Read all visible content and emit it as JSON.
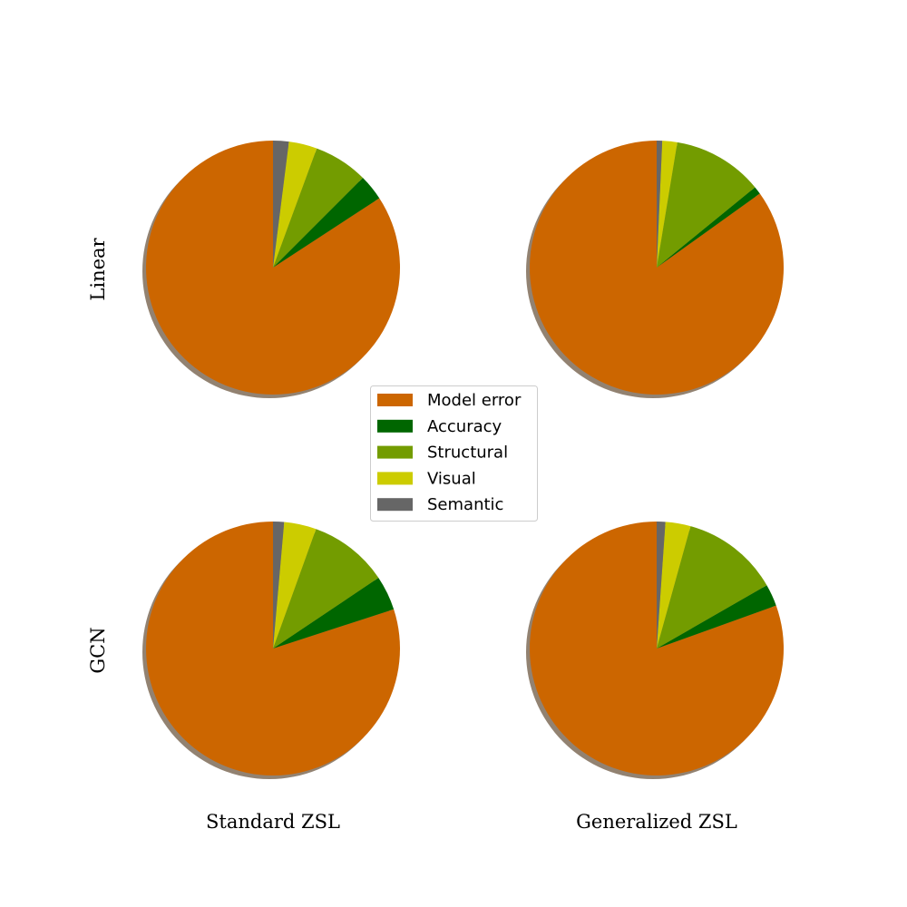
{
  "chart_data": {
    "type": "pie",
    "categories": [
      "Model error",
      "Accuracy",
      "Structural",
      "Visual",
      "Semantic"
    ],
    "colors": [
      "#cc6600",
      "#006600",
      "#739c00",
      "#cccc00",
      "#666666"
    ],
    "row_labels": [
      "Linear",
      "GCN"
    ],
    "column_labels": [
      "Standard ZSL",
      "Generalized ZSL"
    ],
    "values": [
      [
        [
          84.2,
          3.3,
          6.9,
          3.6,
          2.0
        ],
        [
          84.9,
          1.0,
          11.5,
          1.9,
          0.7
        ]
      ],
      [
        [
          80.0,
          4.4,
          10.1,
          4.1,
          1.4
        ],
        [
          80.5,
          2.8,
          12.4,
          3.2,
          1.1
        ]
      ]
    ],
    "legend": "center"
  }
}
